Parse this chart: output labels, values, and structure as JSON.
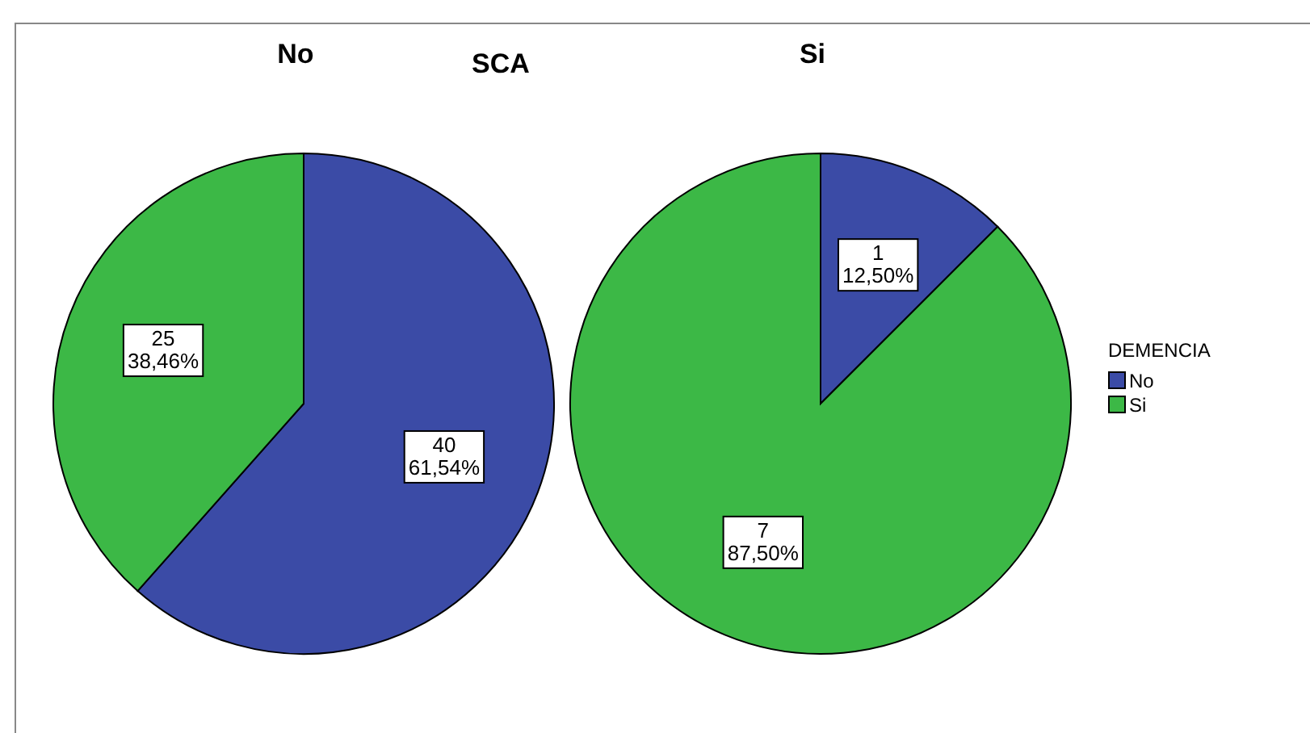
{
  "chart_data": {
    "type": "pie",
    "title": "SCA",
    "categories": [
      "No",
      "Si"
    ],
    "colors": [
      "#3b4ba6",
      "#3cb846"
    ],
    "legend": "right",
    "legend_title": "DEMENCIA",
    "series": [
      {
        "name": "No",
        "values": [
          40,
          25
        ],
        "value_labels": [
          "40\n61,54%",
          "25\n38,46%"
        ]
      },
      {
        "name": "Si",
        "values": [
          1,
          7
        ],
        "value_labels": [
          "1\n12,50%",
          "7\n87,50%"
        ]
      }
    ]
  }
}
